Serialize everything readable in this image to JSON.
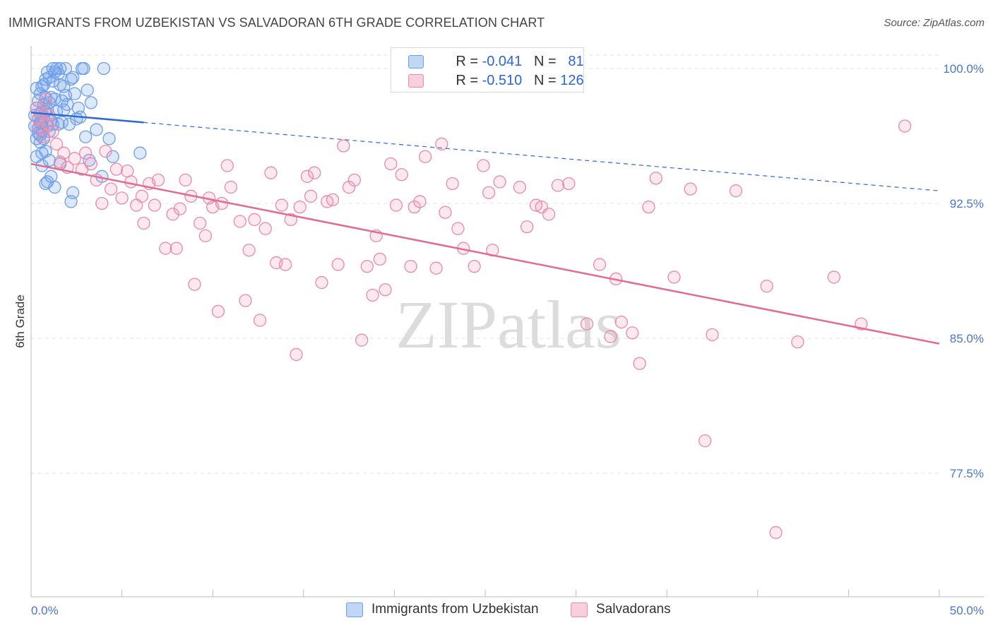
{
  "chart_data": {
    "type": "scatter",
    "title": "IMMIGRANTS FROM UZBEKISTAN VS SALVADORAN 6TH GRADE CORRELATION CHART",
    "source": "Source: ZipAtlas.com",
    "ylabel": "6th Grade",
    "xlim": [
      0,
      50
    ],
    "ylim": [
      70.5,
      101
    ],
    "x_tick_labels": [
      "0.0%",
      "50.0%"
    ],
    "y_ticks": [
      {
        "value": 100,
        "label": "100.0%"
      },
      {
        "value": 92.5,
        "label": "92.5%"
      },
      {
        "value": 85,
        "label": "85.0%"
      },
      {
        "value": 77.5,
        "label": "77.5%"
      }
    ],
    "watermark": "ZIPatlas",
    "legend": [
      {
        "r_label": "R = ",
        "r_value": "-0.041",
        "n_label": "N = ",
        "n_value": "81"
      },
      {
        "r_label": "R = ",
        "r_value": "-0.510",
        "n_label": "N = ",
        "n_value": "126"
      }
    ],
    "series": [
      {
        "name": "Immigrants from Uzbekistan",
        "color": "#6d9eea",
        "fill": "rgba(120,165,235,0.25)",
        "trend_color": "#2e6ad1",
        "trend": {
          "x0": 0,
          "y0": 97.55,
          "x1": 6.2,
          "y1": 97.0,
          "x_dash_end": 50,
          "y_dash_end": 93.2
        },
        "points": [
          [
            0.2,
            97.4
          ],
          [
            0.2,
            96.8
          ],
          [
            0.3,
            96.1
          ],
          [
            0.3,
            97.8
          ],
          [
            0.3,
            95.1
          ],
          [
            0.4,
            97.2
          ],
          [
            0.4,
            96.7
          ],
          [
            0.4,
            98.2
          ],
          [
            0.5,
            96.3
          ],
          [
            0.5,
            97.5
          ],
          [
            0.5,
            95.9
          ],
          [
            0.5,
            98.6
          ],
          [
            0.6,
            97.0
          ],
          [
            0.6,
            96.5
          ],
          [
            0.6,
            99.0
          ],
          [
            0.6,
            94.6
          ],
          [
            0.7,
            97.3
          ],
          [
            0.7,
            98.0
          ],
          [
            0.7,
            96.1
          ],
          [
            0.8,
            98.4
          ],
          [
            0.8,
            97.6
          ],
          [
            0.8,
            99.4
          ],
          [
            0.8,
            95.4
          ],
          [
            0.9,
            97.7
          ],
          [
            0.9,
            96.8
          ],
          [
            0.9,
            99.8
          ],
          [
            1.0,
            98.1
          ],
          [
            1.0,
            99.5
          ],
          [
            1.0,
            96.5
          ],
          [
            1.0,
            94.9
          ],
          [
            1.1,
            98.4
          ],
          [
            1.1,
            97.1
          ],
          [
            1.2,
            100.0
          ],
          [
            1.2,
            99.3
          ],
          [
            1.2,
            96.9
          ],
          [
            1.3,
            99.8
          ],
          [
            1.3,
            98.3
          ],
          [
            1.4,
            100.0
          ],
          [
            1.4,
            97.6
          ],
          [
            1.5,
            99.7
          ],
          [
            1.6,
            100.0
          ],
          [
            1.6,
            99.1
          ],
          [
            1.7,
            98.2
          ],
          [
            1.7,
            97.0
          ],
          [
            1.8,
            99.0
          ],
          [
            1.8,
            97.7
          ],
          [
            1.9,
            98.5
          ],
          [
            2.0,
            98.0
          ],
          [
            2.1,
            96.9
          ],
          [
            2.2,
            99.4
          ],
          [
            2.3,
            99.5
          ],
          [
            2.4,
            98.6
          ],
          [
            2.5,
            97.2
          ],
          [
            2.6,
            97.8
          ],
          [
            2.8,
            100.0
          ],
          [
            2.9,
            100.0
          ],
          [
            3.0,
            96.2
          ],
          [
            3.3,
            98.1
          ],
          [
            3.6,
            96.6
          ],
          [
            4.0,
            100.0
          ],
          [
            4.3,
            96.1
          ],
          [
            4.5,
            95.1
          ],
          [
            3.9,
            94.0
          ],
          [
            3.2,
            94.9
          ],
          [
            2.3,
            93.1
          ],
          [
            2.2,
            92.6
          ],
          [
            1.6,
            94.7
          ],
          [
            1.3,
            93.4
          ],
          [
            1.1,
            94.0
          ],
          [
            0.9,
            93.7
          ],
          [
            0.8,
            93.6
          ],
          [
            0.6,
            95.3
          ],
          [
            0.5,
            97.0
          ],
          [
            0.4,
            96.4
          ],
          [
            1.5,
            96.9
          ],
          [
            2.7,
            97.3
          ],
          [
            3.1,
            98.8
          ],
          [
            0.7,
            99.1
          ],
          [
            1.9,
            100.0
          ],
          [
            0.3,
            98.9
          ],
          [
            6.0,
            95.3
          ]
        ]
      },
      {
        "name": "Salvadorans",
        "color": "#e88aaa",
        "fill": "rgba(240,150,180,0.22)",
        "trend_color": "#e36a96",
        "trend": {
          "x0": 0,
          "y0": 94.7,
          "x1": 50,
          "y1": 84.7
        },
        "points": [
          [
            0.3,
            97.8
          ],
          [
            0.4,
            97.2
          ],
          [
            0.5,
            96.7
          ],
          [
            0.6,
            97.5
          ],
          [
            0.7,
            96.2
          ],
          [
            0.8,
            98.3
          ],
          [
            0.9,
            96.9
          ],
          [
            1.0,
            97.4
          ],
          [
            1.2,
            96.5
          ],
          [
            1.4,
            95.8
          ],
          [
            1.6,
            94.8
          ],
          [
            1.8,
            95.3
          ],
          [
            2.0,
            94.5
          ],
          [
            2.4,
            95.0
          ],
          [
            2.8,
            94.4
          ],
          [
            3.0,
            95.3
          ],
          [
            3.3,
            94.7
          ],
          [
            3.6,
            93.8
          ],
          [
            3.9,
            92.5
          ],
          [
            4.1,
            95.4
          ],
          [
            4.4,
            93.3
          ],
          [
            4.7,
            94.4
          ],
          [
            5.0,
            92.8
          ],
          [
            5.3,
            94.3
          ],
          [
            5.5,
            93.7
          ],
          [
            5.8,
            92.4
          ],
          [
            6.1,
            92.9
          ],
          [
            6.2,
            91.4
          ],
          [
            6.5,
            93.6
          ],
          [
            6.8,
            92.4
          ],
          [
            7.0,
            93.8
          ],
          [
            7.4,
            90.0
          ],
          [
            7.8,
            91.9
          ],
          [
            8.0,
            90.0
          ],
          [
            8.2,
            92.2
          ],
          [
            8.5,
            93.8
          ],
          [
            8.8,
            92.9
          ],
          [
            9.0,
            88.0
          ],
          [
            9.3,
            91.4
          ],
          [
            9.6,
            90.7
          ],
          [
            9.8,
            92.8
          ],
          [
            10.0,
            92.3
          ],
          [
            10.3,
            86.5
          ],
          [
            10.5,
            92.5
          ],
          [
            10.8,
            94.6
          ],
          [
            11.0,
            93.4
          ],
          [
            11.5,
            91.5
          ],
          [
            11.8,
            87.1
          ],
          [
            12.0,
            89.9
          ],
          [
            12.3,
            91.6
          ],
          [
            12.6,
            86.0
          ],
          [
            12.9,
            91.1
          ],
          [
            13.2,
            94.2
          ],
          [
            13.5,
            89.2
          ],
          [
            13.8,
            92.4
          ],
          [
            14.0,
            89.1
          ],
          [
            14.3,
            91.6
          ],
          [
            14.6,
            84.1
          ],
          [
            14.8,
            92.3
          ],
          [
            15.2,
            94.0
          ],
          [
            15.4,
            92.9
          ],
          [
            15.6,
            94.2
          ],
          [
            16.0,
            88.1
          ],
          [
            16.3,
            92.6
          ],
          [
            16.6,
            92.7
          ],
          [
            16.9,
            89.1
          ],
          [
            17.2,
            95.7
          ],
          [
            17.5,
            93.4
          ],
          [
            17.8,
            93.8
          ],
          [
            18.2,
            84.9
          ],
          [
            18.5,
            89.0
          ],
          [
            18.8,
            87.4
          ],
          [
            19.0,
            90.7
          ],
          [
            19.2,
            89.4
          ],
          [
            19.5,
            87.7
          ],
          [
            19.8,
            94.7
          ],
          [
            20.1,
            92.4
          ],
          [
            20.4,
            94.1
          ],
          [
            20.9,
            89.0
          ],
          [
            21.1,
            92.3
          ],
          [
            21.4,
            92.6
          ],
          [
            21.7,
            95.1
          ],
          [
            22.3,
            88.9
          ],
          [
            22.6,
            95.8
          ],
          [
            22.8,
            92.0
          ],
          [
            23.2,
            93.6
          ],
          [
            23.5,
            91.1
          ],
          [
            23.8,
            90.0
          ],
          [
            24.4,
            89.0
          ],
          [
            24.9,
            94.6
          ],
          [
            25.2,
            93.1
          ],
          [
            25.4,
            89.9
          ],
          [
            25.8,
            93.7
          ],
          [
            26.9,
            93.4
          ],
          [
            27.3,
            91.2
          ],
          [
            27.8,
            92.4
          ],
          [
            28.1,
            92.3
          ],
          [
            28.5,
            91.9
          ],
          [
            29.0,
            93.5
          ],
          [
            29.6,
            93.6
          ],
          [
            30.6,
            85.8
          ],
          [
            31.3,
            89.1
          ],
          [
            31.9,
            85.1
          ],
          [
            32.2,
            88.3
          ],
          [
            32.5,
            85.9
          ],
          [
            33.1,
            85.3
          ],
          [
            33.5,
            83.6
          ],
          [
            34.0,
            92.3
          ],
          [
            34.4,
            93.9
          ],
          [
            35.4,
            88.4
          ],
          [
            36.3,
            93.3
          ],
          [
            37.1,
            79.3
          ],
          [
            37.5,
            85.2
          ],
          [
            38.8,
            93.2
          ],
          [
            40.5,
            87.9
          ],
          [
            41.0,
            74.2
          ],
          [
            42.2,
            84.8
          ],
          [
            44.2,
            88.4
          ],
          [
            45.7,
            85.8
          ],
          [
            48.1,
            96.8
          ]
        ]
      }
    ]
  }
}
